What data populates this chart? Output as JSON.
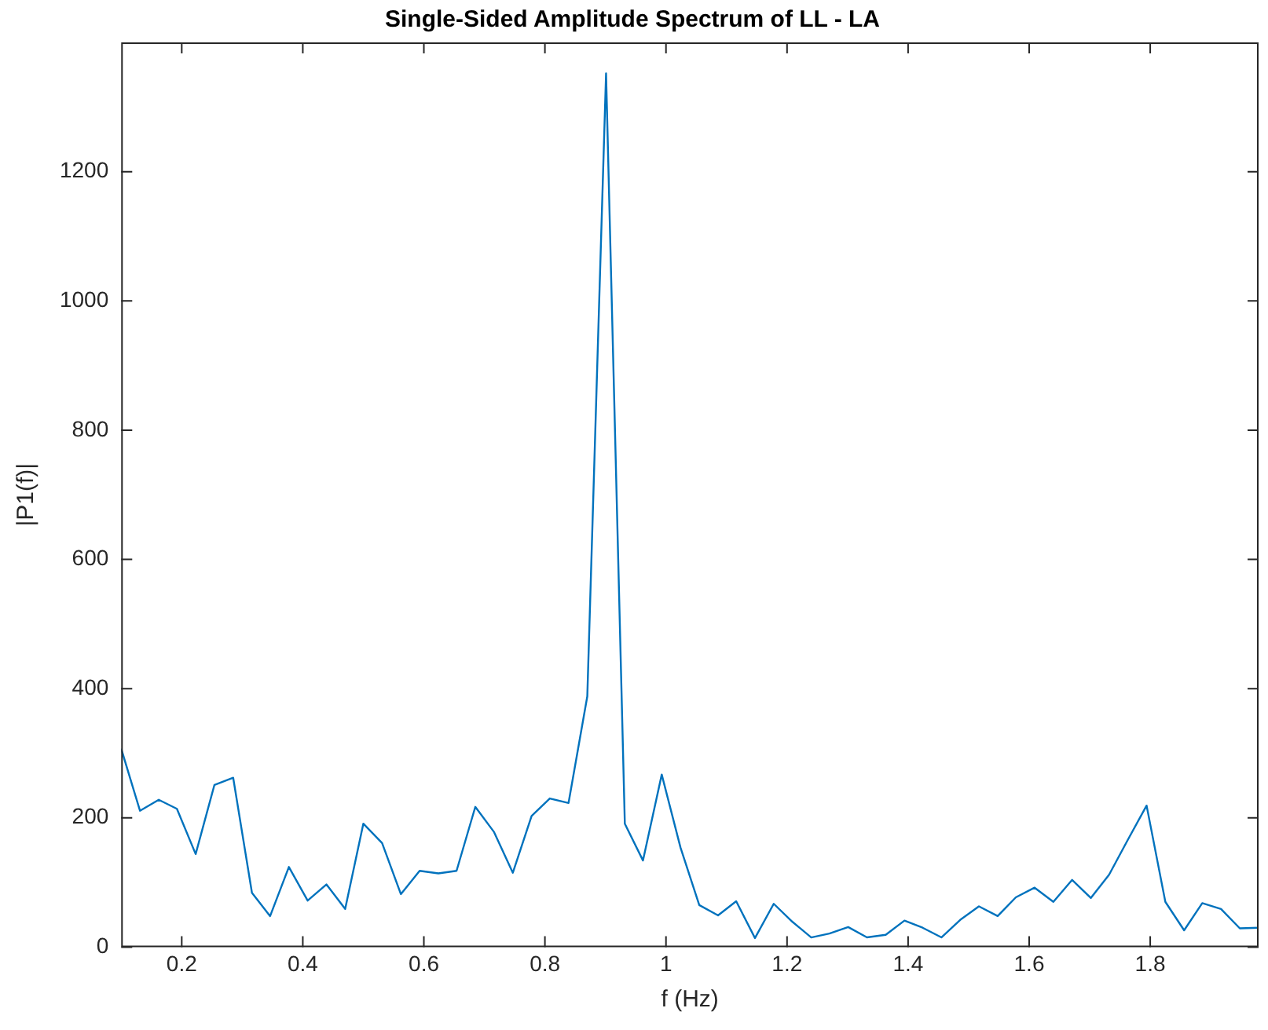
{
  "chart_data": {
    "type": "line",
    "title": "Single-Sided Amplitude Spectrum of LL - LA",
    "xlabel": "f (Hz)",
    "ylabel": "|P1(f)|",
    "x": [
      0.1,
      0.131,
      0.162,
      0.192,
      0.223,
      0.254,
      0.285,
      0.316,
      0.346,
      0.377,
      0.408,
      0.439,
      0.47,
      0.5,
      0.531,
      0.562,
      0.593,
      0.624,
      0.654,
      0.685,
      0.716,
      0.747,
      0.778,
      0.808,
      0.839,
      0.87,
      0.901,
      0.932,
      0.962,
      0.993,
      1.024,
      1.055,
      1.086,
      1.116,
      1.147,
      1.178,
      1.209,
      1.24,
      1.27,
      1.301,
      1.332,
      1.363,
      1.394,
      1.424,
      1.455,
      1.486,
      1.517,
      1.548,
      1.578,
      1.609,
      1.64,
      1.671,
      1.702,
      1.732,
      1.763,
      1.794,
      1.825,
      1.856,
      1.886,
      1.917,
      1.948,
      1.979
    ],
    "series": [
      {
        "color": "#0072bd",
        "values": [
          307,
          211,
          228,
          214,
          144,
          251,
          262,
          84,
          48,
          124,
          72,
          97,
          59,
          191,
          161,
          82,
          118,
          114,
          118,
          217,
          178,
          115,
          203,
          230,
          223,
          388,
          1352,
          191,
          134,
          267,
          154,
          65,
          49,
          71,
          14,
          67,
          39,
          15,
          21,
          31,
          15,
          19,
          41,
          30,
          15,
          42,
          63,
          48,
          77,
          92,
          70,
          104,
          76,
          112,
          166,
          219,
          70,
          26,
          68,
          59,
          29,
          30
        ]
      }
    ],
    "xlim": [
      0.1,
      1.979
    ],
    "xticks": [
      0.2,
      0.4,
      0.6,
      0.8,
      1,
      1.2,
      1.4,
      1.6,
      1.8
    ],
    "ylim": [
      0,
      1400
    ],
    "yticks": [
      0,
      200,
      400,
      600,
      800,
      1000,
      1200
    ],
    "grid": false,
    "legend": false,
    "marker": "none",
    "line_style": "solid"
  }
}
